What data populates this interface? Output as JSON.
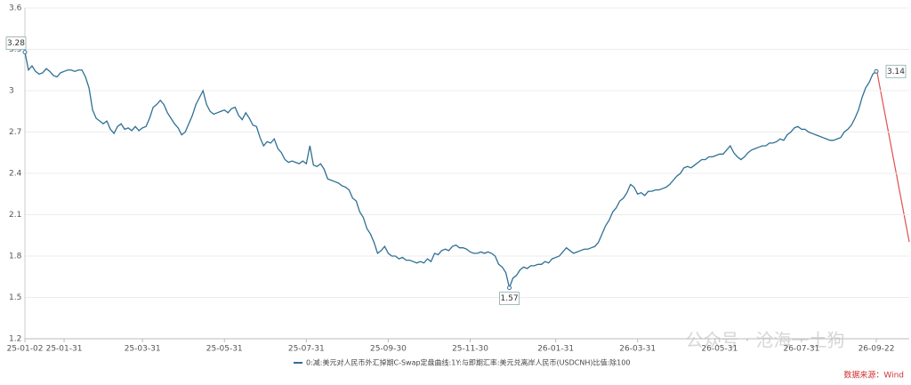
{
  "chart_data": {
    "type": "line",
    "categories": [
      "25-01-02",
      null,
      null,
      null,
      null,
      null,
      null,
      null,
      null,
      null,
      null,
      "25-01-31",
      null,
      null,
      null,
      null,
      null,
      null,
      null,
      null,
      null,
      null,
      null,
      null,
      null,
      null,
      null,
      null,
      null,
      null,
      null,
      null,
      null,
      "25-03-31",
      null,
      null,
      null,
      null,
      null,
      null,
      null,
      null,
      null,
      null,
      null,
      null,
      null,
      null,
      null,
      null,
      null,
      null,
      null,
      null,
      null,
      null,
      "25-05-31",
      null,
      null,
      null,
      null,
      null,
      null,
      null,
      null,
      null,
      null,
      null,
      null,
      null,
      null,
      null,
      null,
      null,
      null,
      null,
      null,
      null,
      null,
      "25-07-31",
      null,
      null,
      null,
      null,
      null,
      null,
      null,
      null,
      null,
      null,
      null,
      null,
      null,
      null,
      null,
      null,
      null,
      null,
      null,
      null,
      null,
      null,
      "25-09-30",
      null,
      null,
      null,
      null,
      null,
      null,
      null,
      null,
      null,
      null,
      null,
      null,
      null,
      null,
      null,
      null,
      null,
      null,
      null,
      null,
      null,
      null,
      "25-11-30",
      null,
      null,
      null,
      null,
      null,
      null,
      null,
      null,
      null,
      null,
      null,
      null,
      null,
      null,
      null,
      null,
      null,
      null,
      null,
      null,
      null,
      null,
      null,
      "26-01-31",
      null,
      null,
      null,
      null,
      null,
      null,
      null,
      null,
      null,
      null,
      null,
      null,
      null,
      null,
      null,
      null,
      null,
      null,
      null,
      null,
      null,
      null,
      "26-03-31",
      null,
      null,
      null,
      null,
      null,
      null,
      null,
      null,
      null,
      null,
      null,
      null,
      null,
      null,
      null,
      null,
      null,
      null,
      null,
      null,
      null,
      null,
      "26-05-31",
      null,
      null,
      null,
      null,
      null,
      null,
      null,
      null,
      null,
      null,
      null,
      null,
      null,
      null,
      null,
      null,
      null,
      null,
      null,
      null,
      null,
      null,
      "26-07-31",
      null,
      null,
      null,
      null,
      null,
      null,
      null,
      null,
      null,
      null,
      null,
      null,
      null,
      null,
      null,
      null,
      null,
      null,
      null,
      null,
      "26-09-22"
    ],
    "series": [
      {
        "name": "0:减:美元对人民币外汇掉期C-Swap定盘曲线:1Y:与即期汇率:美元兑离岸人民币(USDCNH)比值:除100",
        "color": "#2f6f95",
        "values": [
          3.28,
          3.15,
          3.18,
          3.14,
          3.12,
          3.13,
          3.16,
          3.14,
          3.11,
          3.1,
          3.13,
          3.14,
          3.15,
          3.15,
          3.14,
          3.15,
          3.15,
          3.1,
          3.02,
          2.86,
          2.8,
          2.78,
          2.76,
          2.78,
          2.72,
          2.69,
          2.74,
          2.76,
          2.72,
          2.73,
          2.71,
          2.74,
          2.71,
          2.73,
          2.74,
          2.8,
          2.88,
          2.9,
          2.93,
          2.9,
          2.84,
          2.8,
          2.76,
          2.73,
          2.68,
          2.7,
          2.76,
          2.82,
          2.9,
          2.95,
          3.0,
          2.9,
          2.85,
          2.83,
          2.84,
          2.85,
          2.86,
          2.84,
          2.87,
          2.88,
          2.82,
          2.79,
          2.84,
          2.8,
          2.75,
          2.74,
          2.66,
          2.6,
          2.63,
          2.62,
          2.65,
          2.58,
          2.55,
          2.5,
          2.48,
          2.49,
          2.48,
          2.47,
          2.49,
          2.47,
          2.6,
          2.46,
          2.45,
          2.47,
          2.43,
          2.36,
          2.35,
          2.34,
          2.33,
          2.31,
          2.3,
          2.28,
          2.22,
          2.2,
          2.12,
          2.08,
          2.0,
          1.96,
          1.9,
          1.82,
          1.84,
          1.87,
          1.82,
          1.8,
          1.8,
          1.78,
          1.79,
          1.77,
          1.77,
          1.76,
          1.75,
          1.76,
          1.75,
          1.78,
          1.76,
          1.82,
          1.81,
          1.84,
          1.85,
          1.84,
          1.87,
          1.88,
          1.86,
          1.86,
          1.85,
          1.83,
          1.82,
          1.82,
          1.83,
          1.82,
          1.83,
          1.82,
          1.8,
          1.74,
          1.72,
          1.68,
          1.57,
          1.64,
          1.66,
          1.7,
          1.72,
          1.71,
          1.73,
          1.73,
          1.74,
          1.74,
          1.76,
          1.75,
          1.78,
          1.79,
          1.8,
          1.83,
          1.86,
          1.84,
          1.82,
          1.83,
          1.84,
          1.85,
          1.85,
          1.86,
          1.87,
          1.9,
          1.96,
          2.02,
          2.06,
          2.12,
          2.15,
          2.2,
          2.22,
          2.26,
          2.32,
          2.3,
          2.25,
          2.26,
          2.24,
          2.27,
          2.27,
          2.28,
          2.28,
          2.29,
          2.3,
          2.32,
          2.35,
          2.38,
          2.4,
          2.44,
          2.45,
          2.44,
          2.46,
          2.48,
          2.5,
          2.5,
          2.52,
          2.52,
          2.53,
          2.54,
          2.54,
          2.57,
          2.6,
          2.55,
          2.52,
          2.5,
          2.52,
          2.55,
          2.57,
          2.58,
          2.59,
          2.6,
          2.6,
          2.62,
          2.62,
          2.63,
          2.65,
          2.64,
          2.68,
          2.7,
          2.73,
          2.74,
          2.72,
          2.72,
          2.7,
          2.69,
          2.68,
          2.67,
          2.66,
          2.65,
          2.64,
          2.64,
          2.65,
          2.66,
          2.7,
          2.72,
          2.75,
          2.8,
          2.86,
          2.95,
          3.02,
          3.06,
          3.12,
          3.14
        ],
        "value_labels": [
          "3.28",
          null,
          null,
          null,
          null,
          null,
          null,
          null,
          null,
          null,
          null,
          null,
          null,
          null,
          null,
          null,
          null,
          null,
          null,
          null,
          null,
          null,
          null,
          null,
          null,
          null,
          null,
          null,
          null,
          null,
          null,
          null,
          null,
          null,
          null,
          null,
          null,
          null,
          null,
          null,
          null,
          null,
          null,
          null,
          null,
          null,
          null,
          null,
          null,
          null,
          null,
          null,
          null,
          null,
          null,
          null,
          null,
          null,
          null,
          null,
          null,
          null,
          null,
          null,
          null,
          null,
          null,
          null,
          null,
          null,
          null,
          null,
          null,
          null,
          null,
          null,
          null,
          null,
          null,
          null,
          null,
          null,
          null,
          null,
          null,
          null,
          null,
          null,
          null,
          null,
          null,
          null,
          null,
          null,
          null,
          null,
          null,
          null,
          null,
          null,
          null,
          null,
          null,
          null,
          null,
          null,
          null,
          null,
          null,
          null,
          null,
          null,
          null,
          null,
          null,
          null,
          null,
          null,
          null,
          null,
          null,
          null,
          null,
          null,
          null,
          null,
          null,
          null,
          null,
          null,
          null,
          null,
          null,
          null,
          null,
          null,
          "1.57",
          null,
          null,
          null,
          null,
          null,
          null,
          null,
          null,
          null,
          null,
          null,
          null,
          null,
          null,
          null,
          null,
          null,
          null,
          null,
          null,
          null,
          null,
          null,
          null,
          null,
          null,
          null,
          null,
          null,
          null,
          null,
          null,
          null,
          null,
          null,
          null,
          null,
          null,
          null,
          null,
          null,
          null,
          null,
          null,
          null,
          null,
          null,
          null,
          null,
          null,
          null,
          null,
          null,
          null,
          null,
          null,
          null,
          null,
          null,
          null,
          null,
          null,
          null,
          null,
          null,
          null,
          null,
          null,
          null,
          null,
          null,
          null,
          null,
          null,
          null,
          null,
          null,
          null,
          null,
          null,
          null,
          null,
          null,
          null,
          null,
          null,
          null,
          null,
          null,
          null,
          null,
          null,
          null,
          null,
          null,
          null,
          null,
          null,
          null,
          null,
          null,
          null,
          "3.14"
        ]
      }
    ],
    "ylim": [
      1.2,
      3.6
    ],
    "yticks": [
      1.2,
      1.5,
      1.8,
      2.1,
      2.4,
      2.7,
      3,
      3.3,
      3.6
    ],
    "grid": true,
    "source": "数据来源：Wind",
    "watermark": "公众号 · 沧海一土狗"
  }
}
